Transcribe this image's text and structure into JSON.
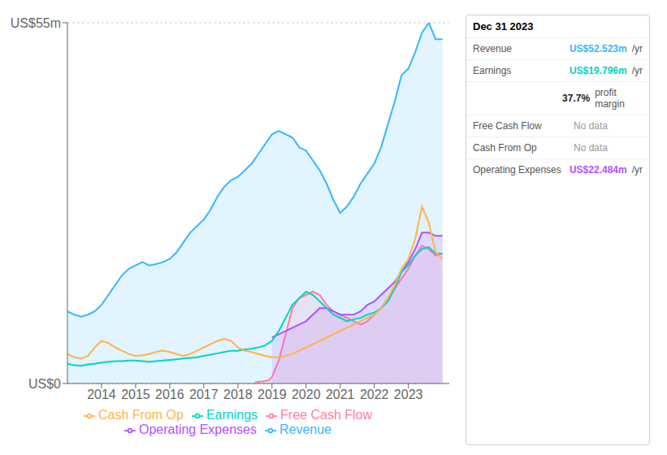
{
  "chart_data": {
    "type": "line",
    "xlim": [
      2013.0,
      2024.2
    ],
    "xticks": [
      2014,
      2015,
      2016,
      2017,
      2018,
      2019,
      2020,
      2021,
      2022,
      2023
    ],
    "ylim": [
      0,
      55
    ],
    "yticks": [
      {
        "value": 0,
        "label": "US$0"
      },
      {
        "value": 55,
        "label": "US$55m"
      }
    ],
    "grid": true,
    "legend": "bottom",
    "series": [
      {
        "name": "Revenue",
        "color": "#38b6ff",
        "type": "area",
        "x": [
          2013.0,
          2013.2,
          2013.4,
          2013.6,
          2013.8,
          2014.0,
          2014.2,
          2014.4,
          2014.6,
          2014.8,
          2015.0,
          2015.2,
          2015.4,
          2015.6,
          2015.8,
          2016.0,
          2016.2,
          2016.4,
          2016.6,
          2016.8,
          2017.0,
          2017.2,
          2017.4,
          2017.6,
          2017.8,
          2018.0,
          2018.2,
          2018.4,
          2018.6,
          2018.8,
          2019.0,
          2019.2,
          2019.4,
          2019.6,
          2019.8,
          2020.0,
          2020.2,
          2020.4,
          2020.6,
          2020.8,
          2021.0,
          2021.2,
          2021.4,
          2021.6,
          2021.8,
          2022.0,
          2022.2,
          2022.4,
          2022.6,
          2022.8,
          2023.0,
          2023.2,
          2023.4,
          2023.6,
          2023.8,
          2024.0
        ],
        "values": [
          11.0,
          10.5,
          10.2,
          10.5,
          11.0,
          12.0,
          13.5,
          15.0,
          16.5,
          17.5,
          18.0,
          18.5,
          18.0,
          18.2,
          18.5,
          19.0,
          20.0,
          21.5,
          23.0,
          24.0,
          25.0,
          26.5,
          28.5,
          30.0,
          31.0,
          31.5,
          32.5,
          33.5,
          35.0,
          36.5,
          38.0,
          38.5,
          38.0,
          37.5,
          36.0,
          35.5,
          34.0,
          32.5,
          30.5,
          28.0,
          26.0,
          27.0,
          28.5,
          30.5,
          32.0,
          33.5,
          36.0,
          39.5,
          43.0,
          47.0,
          48.0,
          50.5,
          53.5,
          55.0,
          52.5,
          52.5
        ]
      },
      {
        "name": "Earnings",
        "color": "#00d4c8",
        "type": "line",
        "x": [
          2013.0,
          2013.2,
          2013.4,
          2013.6,
          2013.8,
          2014.0,
          2014.2,
          2014.4,
          2014.6,
          2014.8,
          2015.0,
          2015.2,
          2015.4,
          2015.6,
          2015.8,
          2016.0,
          2016.2,
          2016.4,
          2016.6,
          2016.8,
          2017.0,
          2017.2,
          2017.4,
          2017.6,
          2017.8,
          2018.0,
          2018.2,
          2018.4,
          2018.6,
          2018.8,
          2019.0,
          2019.2,
          2019.4,
          2019.6,
          2019.8,
          2020.0,
          2020.2,
          2020.4,
          2020.6,
          2020.8,
          2021.0,
          2021.2,
          2021.4,
          2021.6,
          2021.8,
          2022.0,
          2022.2,
          2022.4,
          2022.6,
          2022.8,
          2023.0,
          2023.2,
          2023.4,
          2023.6,
          2023.8,
          2024.0
        ],
        "values": [
          3.0,
          2.8,
          2.7,
          2.9,
          3.0,
          3.2,
          3.3,
          3.4,
          3.4,
          3.5,
          3.5,
          3.4,
          3.3,
          3.4,
          3.5,
          3.6,
          3.7,
          3.8,
          3.9,
          4.0,
          4.2,
          4.4,
          4.6,
          4.8,
          5.0,
          5.0,
          5.2,
          5.3,
          5.5,
          5.8,
          6.5,
          8.0,
          10.0,
          12.0,
          13.0,
          14.0,
          13.5,
          12.5,
          11.5,
          10.5,
          10.0,
          9.5,
          9.8,
          10.0,
          10.5,
          10.8,
          11.5,
          12.5,
          14.5,
          17.0,
          18.0,
          19.5,
          20.5,
          20.8,
          19.8,
          19.8
        ]
      },
      {
        "name": "Free Cash Flow",
        "color": "#ff7fa0",
        "type": "area",
        "x": [
          2018.5,
          2018.7,
          2018.9,
          2019.0,
          2019.2,
          2019.4,
          2019.6,
          2019.8,
          2020.0,
          2020.2,
          2020.4,
          2020.6,
          2020.8,
          2021.0,
          2021.2,
          2021.4,
          2021.6,
          2021.8,
          2022.0,
          2022.2,
          2022.4,
          2022.6,
          2022.8,
          2023.0,
          2023.2,
          2023.4,
          2023.6,
          2023.8,
          2024.0
        ],
        "values": [
          0.2,
          0.3,
          0.5,
          1.0,
          3.5,
          7.5,
          11.5,
          13.0,
          13.5,
          14.0,
          13.5,
          12.0,
          11.0,
          10.5,
          10.0,
          9.5,
          9.0,
          9.5,
          10.5,
          11.5,
          13.0,
          14.5,
          16.0,
          17.5,
          19.5,
          21.0,
          20.5,
          19.5,
          19.8
        ]
      },
      {
        "name": "Cash From Op",
        "color": "#ffb347",
        "type": "line",
        "x": [
          2013.0,
          2013.2,
          2013.4,
          2013.6,
          2013.8,
          2014.0,
          2014.2,
          2014.4,
          2014.6,
          2014.8,
          2015.0,
          2015.2,
          2015.4,
          2015.6,
          2015.8,
          2016.0,
          2016.2,
          2016.4,
          2016.6,
          2016.8,
          2017.0,
          2017.2,
          2017.4,
          2017.6,
          2017.8,
          2018.0,
          2018.2,
          2018.4,
          2018.6,
          2018.8,
          2019.0,
          2019.2,
          2019.4,
          2019.6,
          2019.8,
          2020.0,
          2020.2,
          2020.4,
          2020.6,
          2020.8,
          2021.0,
          2021.2,
          2021.4,
          2021.6,
          2021.8,
          2022.0,
          2022.2,
          2022.4,
          2022.6,
          2022.8,
          2023.0,
          2023.2,
          2023.4,
          2023.6,
          2023.8,
          2024.0
        ],
        "values": [
          4.5,
          4.0,
          3.8,
          4.2,
          5.5,
          6.5,
          6.2,
          5.5,
          5.0,
          4.5,
          4.2,
          4.3,
          4.5,
          4.8,
          5.0,
          4.8,
          4.5,
          4.2,
          4.5,
          5.0,
          5.5,
          6.0,
          6.5,
          6.8,
          6.5,
          5.5,
          5.0,
          4.8,
          4.5,
          4.2,
          4.0,
          4.0,
          4.2,
          4.5,
          5.0,
          5.5,
          6.0,
          6.5,
          7.0,
          7.5,
          8.0,
          8.5,
          9.0,
          9.5,
          10.0,
          10.5,
          11.5,
          13.0,
          15.0,
          17.5,
          19.0,
          22.0,
          27.0,
          24.5,
          20.0,
          19.0
        ]
      },
      {
        "name": "Operating Expenses",
        "color": "#b44fff",
        "type": "area",
        "x": [
          2019.0,
          2019.2,
          2019.4,
          2019.6,
          2019.8,
          2020.0,
          2020.2,
          2020.4,
          2020.6,
          2020.8,
          2021.0,
          2021.2,
          2021.4,
          2021.6,
          2021.8,
          2022.0,
          2022.2,
          2022.4,
          2022.6,
          2022.8,
          2023.0,
          2023.2,
          2023.4,
          2023.6,
          2023.8,
          2024.0
        ],
        "values": [
          7.0,
          7.5,
          8.0,
          8.5,
          9.0,
          9.5,
          10.5,
          11.5,
          11.5,
          11.0,
          10.5,
          10.5,
          10.5,
          11.0,
          12.0,
          12.5,
          13.5,
          14.5,
          15.5,
          17.0,
          18.5,
          20.5,
          23.0,
          23.0,
          22.5,
          22.5
        ]
      }
    ],
    "annotations": [
      {
        "text": "Dec 31 2023"
      },
      {
        "label": "Revenue",
        "value": "US$52.523m",
        "suffix": "/yr",
        "color": "#38b6ff"
      },
      {
        "label": "Earnings",
        "value": "US$19.796m",
        "suffix": "/yr",
        "color": "#00d4c8"
      },
      {
        "value": "37.7%",
        "suffix": "profit margin"
      },
      {
        "label": "Free Cash Flow",
        "value": "No data"
      },
      {
        "label": "Cash From Op",
        "value": "No data"
      },
      {
        "label": "Operating Expenses",
        "value": "US$22.484m",
        "suffix": "/yr",
        "color": "#b44fff"
      }
    ]
  }
}
